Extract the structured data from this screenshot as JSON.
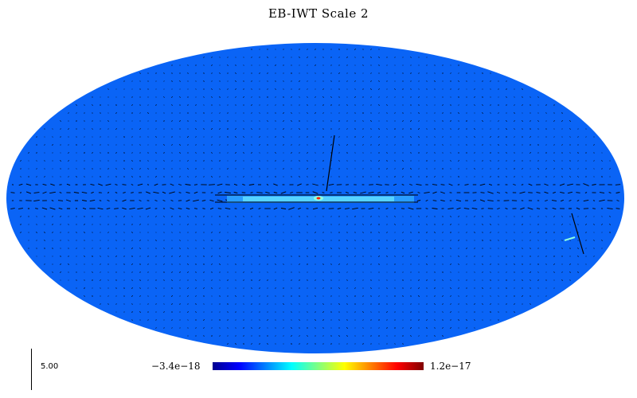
{
  "title": "EB-IWT Scale 2",
  "colorbar": {
    "min_label": "−3.4e−18",
    "max_label": "1.2e−17",
    "colormap": [
      "#00008f",
      "#0000ff",
      "#0080ff",
      "#00ffff",
      "#80ff80",
      "#ffff00",
      "#ff8000",
      "#ff0000",
      "#800000"
    ]
  },
  "scale_label": "5.00",
  "colors": {
    "map_background": "#0a64f6",
    "vector_color": "#000000",
    "band_core": "#2a9dff",
    "band_hot": "#8fffe0"
  }
}
